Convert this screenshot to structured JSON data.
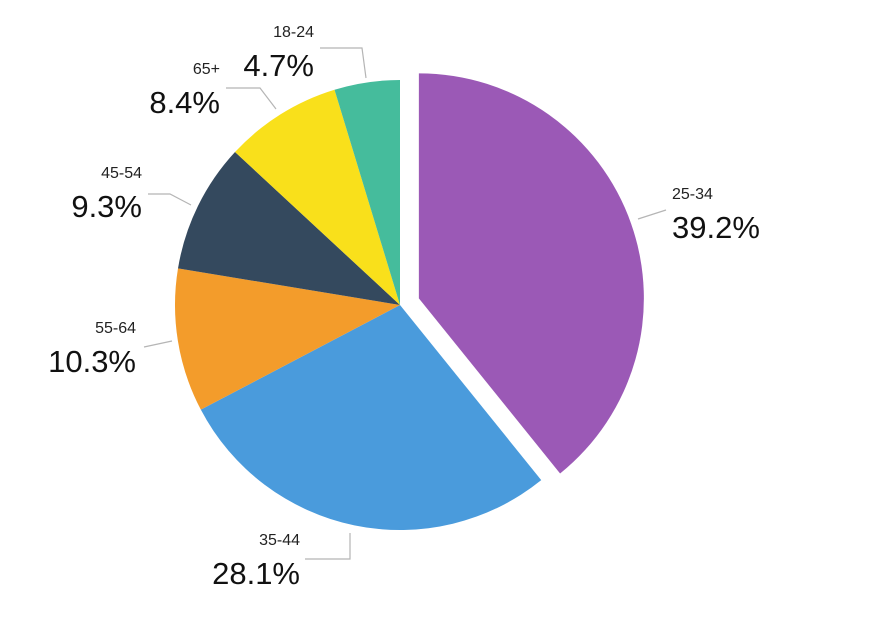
{
  "chart_data": {
    "type": "pie",
    "title": "",
    "categories": [
      "25-34",
      "35-44",
      "55-64",
      "45-54",
      "65+",
      "18-24"
    ],
    "values": [
      39.2,
      28.1,
      10.3,
      9.3,
      8.4,
      4.7
    ],
    "value_labels": [
      "39.2%",
      "28.1%",
      "10.3%",
      "9.3%",
      "8.4%",
      "4.7%"
    ],
    "colors": [
      "#9b59b6",
      "#4a9bdc",
      "#f39c2b",
      "#34495e",
      "#f9e01b",
      "#45bc9c"
    ],
    "start_angle_deg": 0,
    "direction": "clockwise",
    "exploded_slice": "25-34",
    "legend": "none"
  }
}
